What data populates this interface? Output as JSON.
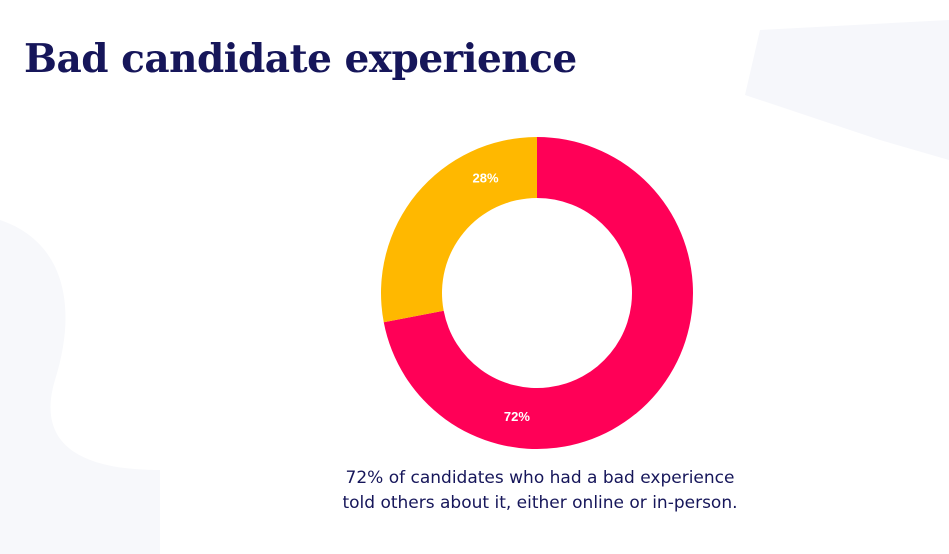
{
  "slide": {
    "title": "Bad candidate experience",
    "caption_lines": [
      "72% of candidates who had a bad experience",
      "told others about it, either online or in-person."
    ]
  },
  "chart_data": {
    "type": "pie",
    "variant": "donut",
    "title": "",
    "slices": [
      {
        "label": "72%",
        "value": 72,
        "color": "#ff0057"
      },
      {
        "label": "28%",
        "value": 28,
        "color": "#ffb800"
      }
    ],
    "start_angle_deg": 0,
    "direction": "clockwise",
    "legend": "none"
  }
}
